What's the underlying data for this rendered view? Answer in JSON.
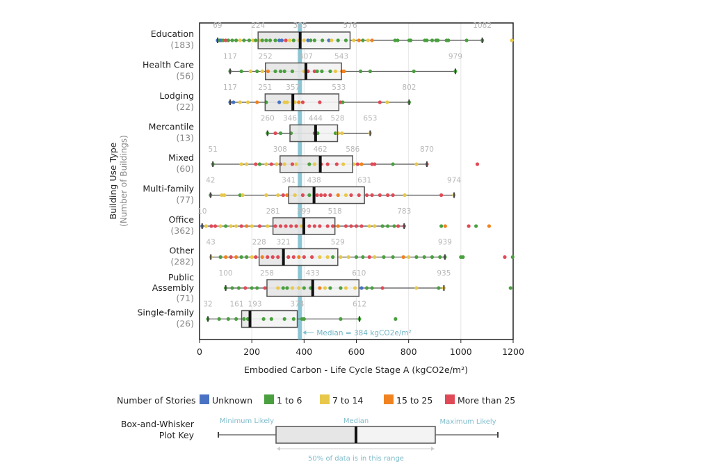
{
  "chart_data": {
    "type": "box-and-whisker with strip points",
    "xlabel": "Embodied Carbon - Life Cycle Stage A (kgCO2e/m²)",
    "ylabel": "Building Use Type",
    "ylabel_sub": "(Number of Buildings)",
    "xlim": [
      0,
      1200
    ],
    "xticks": [
      0,
      200,
      400,
      600,
      800,
      1000,
      1200
    ],
    "grid": "vertical",
    "overall_median": {
      "value": 384,
      "label": "Median = 384 kgCO2e/m²",
      "color": "#7fc0cf"
    },
    "colors": {
      "u": "#4a72c4",
      "g": "#4aa03f",
      "y": "#e8c84a",
      "o": "#f0821f",
      "r": "#e04a57"
    },
    "legend": {
      "title": "Number of Stories",
      "items": [
        {
          "key": "u",
          "label": "Unknown"
        },
        {
          "key": "g",
          "label": "1 to 6"
        },
        {
          "key": "y",
          "label": "7 to 14"
        },
        {
          "key": "o",
          "label": "15 to 25"
        },
        {
          "key": "r",
          "label": "More than 25"
        }
      ]
    },
    "categories": [
      {
        "name": "Education",
        "count": "(183)",
        "min": 69,
        "q1": 224,
        "median": 385,
        "q3": 576,
        "max": 1082,
        "points": [
          [
            69,
            "u"
          ],
          [
            75,
            "g"
          ],
          [
            82,
            "u"
          ],
          [
            90,
            "g"
          ],
          [
            100,
            "r"
          ],
          [
            110,
            "g"
          ],
          [
            125,
            "g"
          ],
          [
            140,
            "g"
          ],
          [
            155,
            "y"
          ],
          [
            170,
            "g"
          ],
          [
            190,
            "g"
          ],
          [
            205,
            "y"
          ],
          [
            215,
            "g"
          ],
          [
            228,
            "y"
          ],
          [
            240,
            "g"
          ],
          [
            255,
            "g"
          ],
          [
            270,
            "g"
          ],
          [
            290,
            "g"
          ],
          [
            305,
            "u"
          ],
          [
            315,
            "u"
          ],
          [
            330,
            "r"
          ],
          [
            345,
            "y"
          ],
          [
            360,
            "g"
          ],
          [
            380,
            "y"
          ],
          [
            400,
            "y"
          ],
          [
            415,
            "u"
          ],
          [
            425,
            "g"
          ],
          [
            440,
            "g"
          ],
          [
            470,
            "g"
          ],
          [
            495,
            "u"
          ],
          [
            505,
            "y"
          ],
          [
            530,
            "g"
          ],
          [
            560,
            "g"
          ],
          [
            590,
            "y"
          ],
          [
            610,
            "o"
          ],
          [
            625,
            "g"
          ],
          [
            645,
            "y"
          ],
          [
            660,
            "o"
          ],
          [
            748,
            "g"
          ],
          [
            758,
            "g"
          ],
          [
            802,
            "g"
          ],
          [
            808,
            "g"
          ],
          [
            862,
            "g"
          ],
          [
            870,
            "g"
          ],
          [
            890,
            "g"
          ],
          [
            905,
            "g"
          ],
          [
            912,
            "g"
          ],
          [
            945,
            "g"
          ],
          [
            952,
            "g"
          ],
          [
            1022,
            "g"
          ],
          [
            1082,
            "g"
          ],
          [
            1195,
            "y"
          ]
        ]
      },
      {
        "name": "Health Care",
        "count": "(56)",
        "min": 117,
        "q1": 252,
        "median": 407,
        "q3": 543,
        "max": 979,
        "points": [
          [
            117,
            "g"
          ],
          [
            160,
            "g"
          ],
          [
            195,
            "y"
          ],
          [
            220,
            "g"
          ],
          [
            240,
            "y"
          ],
          [
            262,
            "o"
          ],
          [
            290,
            "g"
          ],
          [
            310,
            "g"
          ],
          [
            325,
            "g"
          ],
          [
            355,
            "g"
          ],
          [
            400,
            "y"
          ],
          [
            415,
            "r"
          ],
          [
            440,
            "r"
          ],
          [
            450,
            "g"
          ],
          [
            468,
            "g"
          ],
          [
            500,
            "g"
          ],
          [
            520,
            "y"
          ],
          [
            545,
            "o"
          ],
          [
            553,
            "o"
          ],
          [
            616,
            "g"
          ],
          [
            653,
            "g"
          ],
          [
            820,
            "g"
          ],
          [
            979,
            "g"
          ]
        ]
      },
      {
        "name": "Lodging",
        "count": "(22)",
        "min": 117,
        "q1": 251,
        "median": 357,
        "q3": 533,
        "max": 802,
        "points": [
          [
            117,
            "u"
          ],
          [
            130,
            "u"
          ],
          [
            155,
            "y"
          ],
          [
            185,
            "y"
          ],
          [
            220,
            "o"
          ],
          [
            255,
            "g"
          ],
          [
            305,
            "u"
          ],
          [
            325,
            "y"
          ],
          [
            335,
            "y"
          ],
          [
            365,
            "y"
          ],
          [
            380,
            "o"
          ],
          [
            395,
            "r"
          ],
          [
            460,
            "r"
          ],
          [
            540,
            "r"
          ],
          [
            548,
            "g"
          ],
          [
            690,
            "r"
          ],
          [
            718,
            "y"
          ],
          [
            802,
            "g"
          ]
        ]
      },
      {
        "name": "Mercantile",
        "count": "(13)",
        "min": 260,
        "q1": 346,
        "median": 444,
        "q3": 528,
        "max": 653,
        "points": [
          [
            260,
            "g"
          ],
          [
            290,
            "r"
          ],
          [
            310,
            "g"
          ],
          [
            350,
            "g"
          ],
          [
            440,
            "r"
          ],
          [
            452,
            "g"
          ],
          [
            520,
            "g"
          ],
          [
            530,
            "y"
          ],
          [
            545,
            "y"
          ],
          [
            653,
            "y"
          ]
        ]
      },
      {
        "name": "Mixed",
        "count": "(60)",
        "min": 51,
        "q1": 308,
        "median": 462,
        "q3": 586,
        "max": 870,
        "points": [
          [
            51,
            "g"
          ],
          [
            160,
            "y"
          ],
          [
            180,
            "y"
          ],
          [
            215,
            "r"
          ],
          [
            230,
            "g"
          ],
          [
            255,
            "y"
          ],
          [
            275,
            "r"
          ],
          [
            295,
            "y"
          ],
          [
            310,
            "r"
          ],
          [
            325,
            "y"
          ],
          [
            355,
            "r"
          ],
          [
            370,
            "y"
          ],
          [
            420,
            "g"
          ],
          [
            440,
            "y"
          ],
          [
            465,
            "r"
          ],
          [
            490,
            "r"
          ],
          [
            525,
            "r"
          ],
          [
            550,
            "y"
          ],
          [
            590,
            "y"
          ],
          [
            605,
            "r"
          ],
          [
            620,
            "o"
          ],
          [
            660,
            "r"
          ],
          [
            670,
            "r"
          ],
          [
            740,
            "g"
          ],
          [
            830,
            "y"
          ],
          [
            870,
            "r"
          ],
          [
            1063,
            "r"
          ]
        ]
      },
      {
        "name": "Multi-family",
        "count": "(77)",
        "min": 42,
        "q1": 341,
        "median": 438,
        "q3": 631,
        "max": 974,
        "points": [
          [
            42,
            "g"
          ],
          [
            85,
            "y"
          ],
          [
            95,
            "y"
          ],
          [
            155,
            "g"
          ],
          [
            165,
            "y"
          ],
          [
            255,
            "y"
          ],
          [
            300,
            "y"
          ],
          [
            320,
            "r"
          ],
          [
            335,
            "o"
          ],
          [
            365,
            "y"
          ],
          [
            395,
            "r"
          ],
          [
            420,
            "g"
          ],
          [
            450,
            "r"
          ],
          [
            465,
            "r"
          ],
          [
            480,
            "r"
          ],
          [
            500,
            "r"
          ],
          [
            530,
            "o"
          ],
          [
            560,
            "y"
          ],
          [
            580,
            "r"
          ],
          [
            610,
            "r"
          ],
          [
            640,
            "r"
          ],
          [
            660,
            "r"
          ],
          [
            690,
            "r"
          ],
          [
            720,
            "r"
          ],
          [
            740,
            "r"
          ],
          [
            785,
            "y"
          ],
          [
            925,
            "r"
          ],
          [
            974,
            "y"
          ]
        ]
      },
      {
        "name": "Office",
        "count": "(362)",
        "min": 10,
        "q1": 281,
        "median": 399,
        "q3": 518,
        "max": 783,
        "points": [
          [
            10,
            "u"
          ],
          [
            25,
            "y"
          ],
          [
            45,
            "r"
          ],
          [
            60,
            "r"
          ],
          [
            80,
            "y"
          ],
          [
            100,
            "g"
          ],
          [
            120,
            "y"
          ],
          [
            140,
            "y"
          ],
          [
            160,
            "r"
          ],
          [
            180,
            "o"
          ],
          [
            200,
            "y"
          ],
          [
            230,
            "r"
          ],
          [
            260,
            "y"
          ],
          [
            290,
            "r"
          ],
          [
            310,
            "r"
          ],
          [
            330,
            "r"
          ],
          [
            350,
            "r"
          ],
          [
            370,
            "r"
          ],
          [
            390,
            "y"
          ],
          [
            420,
            "r"
          ],
          [
            440,
            "r"
          ],
          [
            460,
            "r"
          ],
          [
            490,
            "r"
          ],
          [
            510,
            "r"
          ],
          [
            530,
            "o"
          ],
          [
            560,
            "r"
          ],
          [
            580,
            "r"
          ],
          [
            600,
            "r"
          ],
          [
            620,
            "r"
          ],
          [
            650,
            "y"
          ],
          [
            670,
            "y"
          ],
          [
            700,
            "g"
          ],
          [
            720,
            "g"
          ],
          [
            745,
            "g"
          ],
          [
            760,
            "r"
          ],
          [
            783,
            "r"
          ],
          [
            925,
            "g"
          ],
          [
            940,
            "o"
          ],
          [
            1030,
            "r"
          ],
          [
            1058,
            "g"
          ],
          [
            1108,
            "o"
          ]
        ]
      },
      {
        "name": "Other",
        "count": "(282)",
        "min": 43,
        "q1": 228,
        "median": 321,
        "q3": 529,
        "max": 939,
        "points": [
          [
            43,
            "y"
          ],
          [
            80,
            "g"
          ],
          [
            100,
            "o"
          ],
          [
            120,
            "r"
          ],
          [
            140,
            "o"
          ],
          [
            160,
            "g"
          ],
          [
            180,
            "g"
          ],
          [
            200,
            "y"
          ],
          [
            215,
            "r"
          ],
          [
            240,
            "o"
          ],
          [
            260,
            "r"
          ],
          [
            280,
            "r"
          ],
          [
            300,
            "r"
          ],
          [
            340,
            "r"
          ],
          [
            360,
            "r"
          ],
          [
            380,
            "o"
          ],
          [
            400,
            "r"
          ],
          [
            430,
            "r"
          ],
          [
            460,
            "y"
          ],
          [
            490,
            "y"
          ],
          [
            510,
            "g"
          ],
          [
            540,
            "y"
          ],
          [
            570,
            "y"
          ],
          [
            600,
            "g"
          ],
          [
            625,
            "g"
          ],
          [
            650,
            "r"
          ],
          [
            670,
            "y"
          ],
          [
            705,
            "g"
          ],
          [
            740,
            "g"
          ],
          [
            780,
            "o"
          ],
          [
            800,
            "y"
          ],
          [
            830,
            "g"
          ],
          [
            860,
            "g"
          ],
          [
            890,
            "g"
          ],
          [
            920,
            "g"
          ],
          [
            939,
            "g"
          ],
          [
            1000,
            "g"
          ],
          [
            1008,
            "g"
          ],
          [
            1168,
            "r"
          ],
          [
            1198,
            "g"
          ]
        ]
      },
      {
        "name": "Public Assembly",
        "count": "(71)",
        "min": 100,
        "q1": 258,
        "median": 433,
        "q3": 610,
        "max": 935,
        "points": [
          [
            100,
            "g"
          ],
          [
            125,
            "g"
          ],
          [
            150,
            "g"
          ],
          [
            175,
            "r"
          ],
          [
            200,
            "g"
          ],
          [
            220,
            "g"
          ],
          [
            250,
            "r"
          ],
          [
            300,
            "y"
          ],
          [
            320,
            "g"
          ],
          [
            335,
            "g"
          ],
          [
            355,
            "y"
          ],
          [
            380,
            "y"
          ],
          [
            400,
            "g"
          ],
          [
            425,
            "g"
          ],
          [
            460,
            "o"
          ],
          [
            480,
            "y"
          ],
          [
            500,
            "g"
          ],
          [
            540,
            "g"
          ],
          [
            560,
            "y"
          ],
          [
            595,
            "y"
          ],
          [
            620,
            "u"
          ],
          [
            640,
            "g"
          ],
          [
            660,
            "g"
          ],
          [
            700,
            "r"
          ],
          [
            830,
            "y"
          ],
          [
            915,
            "g"
          ],
          [
            935,
            "y"
          ],
          [
            1190,
            "g"
          ]
        ]
      },
      {
        "name": "Single-family",
        "count": "(26)",
        "min": 32,
        "q1": 161,
        "median": 193,
        "q3": 374,
        "max": 612,
        "points": [
          [
            32,
            "g"
          ],
          [
            75,
            "g"
          ],
          [
            110,
            "g"
          ],
          [
            140,
            "g"
          ],
          [
            170,
            "g"
          ],
          [
            185,
            "g"
          ],
          [
            245,
            "g"
          ],
          [
            275,
            "g"
          ],
          [
            325,
            "g"
          ],
          [
            360,
            "g"
          ],
          [
            392,
            "g"
          ],
          [
            400,
            "g"
          ],
          [
            540,
            "g"
          ],
          [
            612,
            "g"
          ],
          [
            750,
            "g"
          ]
        ]
      }
    ]
  },
  "key": {
    "title_line1": "Box-and-Whisker",
    "title_line2": "Plot Key",
    "min_label": "Minimum Likely",
    "median_label": "Median",
    "max_label": "Maximum Likely",
    "range_label": "50% of data is in this range"
  }
}
